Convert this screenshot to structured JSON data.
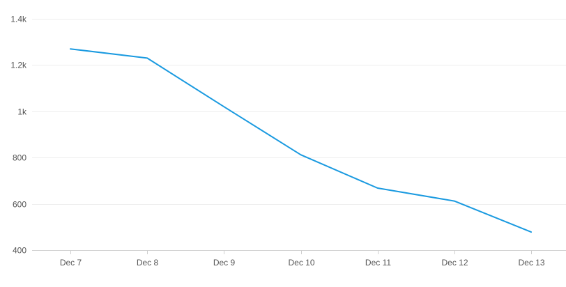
{
  "chart_data": {
    "type": "line",
    "title": "",
    "xlabel": "",
    "ylabel": "",
    "categories": [
      "Dec 7",
      "Dec 8",
      "Dec 9",
      "Dec 10",
      "Dec 11",
      "Dec 12",
      "Dec 13"
    ],
    "series": [
      {
        "values": [
          1270,
          1230,
          1020,
          812,
          668,
          612,
          478
        ],
        "color": "#1a9ae0"
      }
    ],
    "ylim": [
      400,
      1400
    ],
    "y_ticks": [
      400,
      600,
      800,
      1000,
      1200,
      1400
    ],
    "y_tick_labels": [
      "400",
      "600",
      "800",
      "1k",
      "1.2k",
      "1.4k"
    ],
    "grid": true,
    "legend": "none"
  }
}
